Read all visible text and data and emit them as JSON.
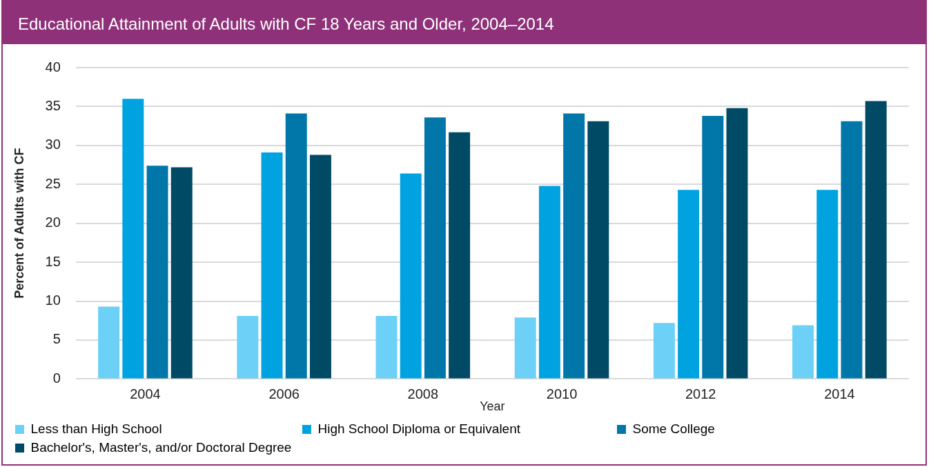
{
  "chart_data": {
    "type": "bar",
    "title": "Educational Attainment of Adults with CF 18 Years and Older, 2004–2014",
    "xlabel": "Year",
    "ylabel": "Percent of Adults with CF",
    "categories": [
      "2004",
      "2006",
      "2008",
      "2010",
      "2012",
      "2014"
    ],
    "series": [
      {
        "name": "Less than High School",
        "color": "#6dd0f7",
        "values": [
          9.3,
          8.1,
          8.1,
          7.9,
          7.2,
          6.9
        ]
      },
      {
        "name": "High School Diploma or Equivalent",
        "color": "#00a3e0",
        "values": [
          36.0,
          29.1,
          26.4,
          24.8,
          24.3,
          24.3
        ]
      },
      {
        "name": "Some College",
        "color": "#0077a8",
        "values": [
          27.4,
          34.1,
          33.6,
          34.1,
          33.8,
          33.1
        ]
      },
      {
        "name": "Bachelor's, Master's, and/or Doctoral Degree",
        "color": "#004a66",
        "values": [
          27.2,
          28.8,
          31.7,
          33.1,
          34.8,
          35.7
        ]
      }
    ],
    "ylim": [
      0,
      40
    ],
    "yticks": [
      0,
      5,
      10,
      15,
      20,
      25,
      30,
      35,
      40
    ],
    "grid": "y",
    "legend": "bottom"
  }
}
